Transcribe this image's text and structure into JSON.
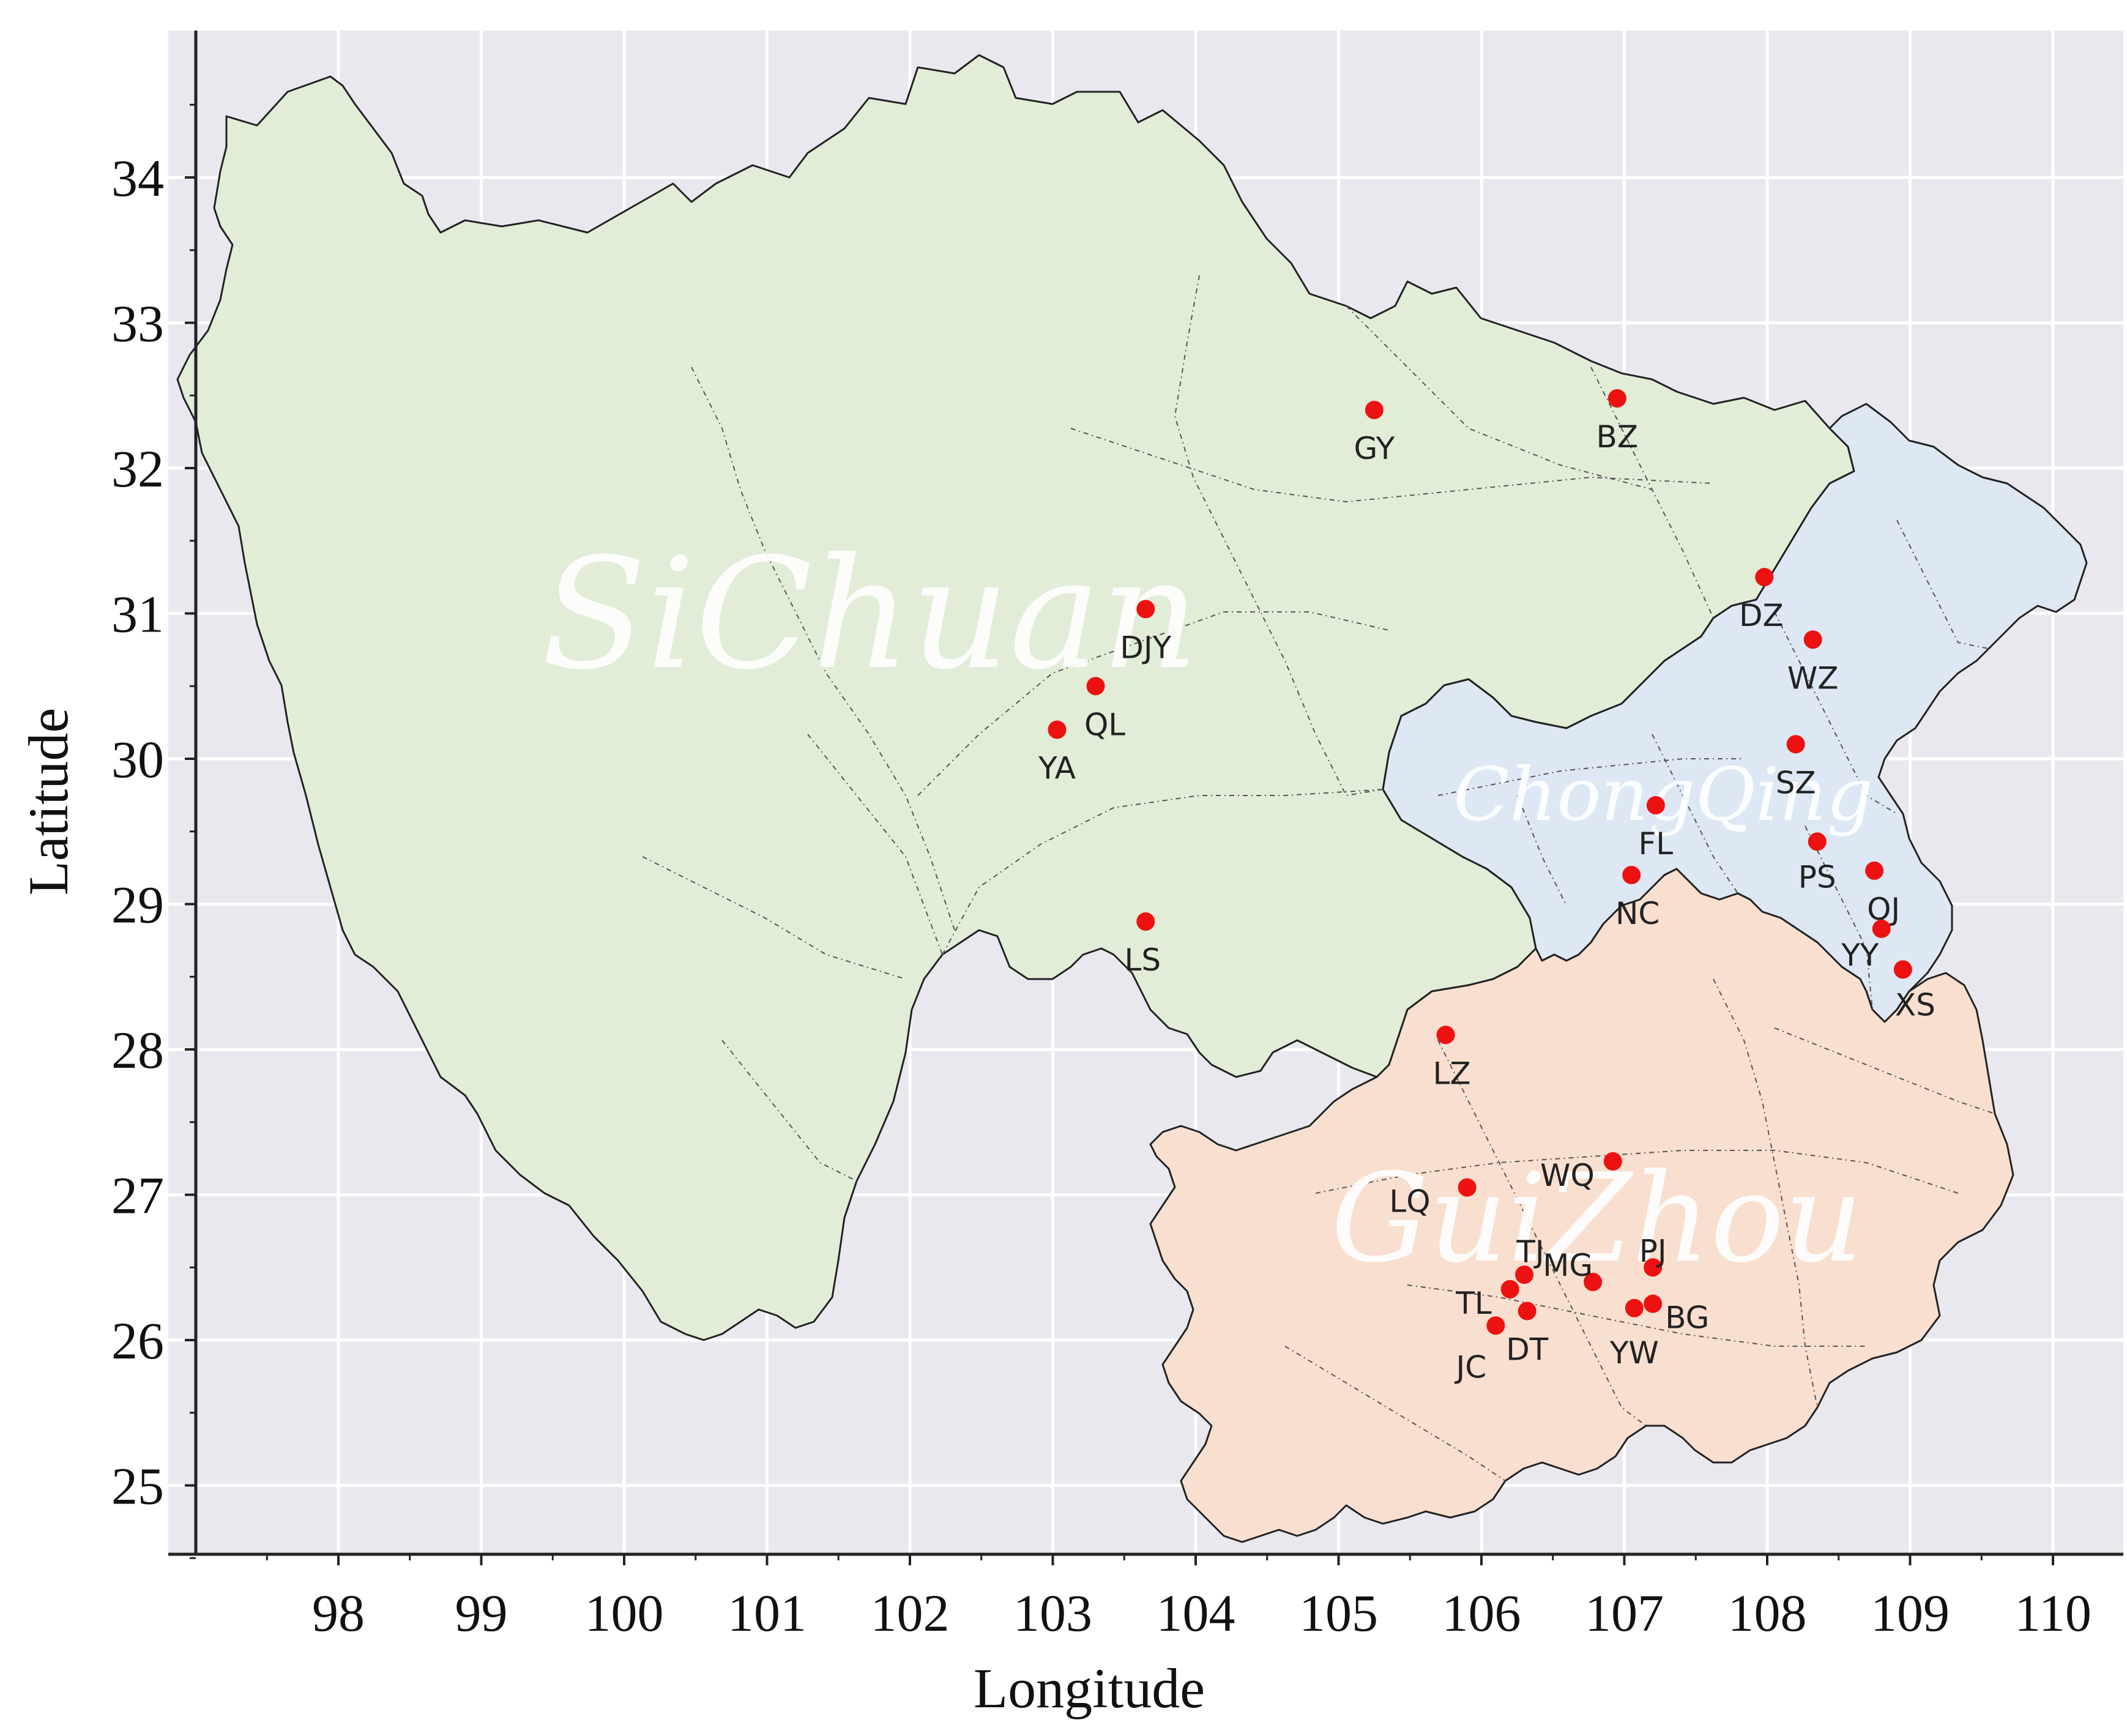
{
  "axes": {
    "x_label": "Longitude",
    "y_label": "Latitude",
    "x_ticks": [
      "98",
      "99",
      "100",
      "101",
      "102",
      "103",
      "104",
      "105",
      "106",
      "107",
      "108",
      "109",
      "110"
    ],
    "y_ticks": [
      "25",
      "26",
      "27",
      "28",
      "29",
      "30",
      "31",
      "32",
      "33",
      "34"
    ],
    "x_range": [
      97.2,
      110.5
    ],
    "y_range": [
      24.5,
      35.0
    ],
    "grid": true
  },
  "regions": [
    {
      "id": "sichuan",
      "label": "SiChuan",
      "fill": "#e2edd8"
    },
    {
      "id": "chongqing",
      "label": "ChongQing",
      "fill": "#dde8f4"
    },
    {
      "id": "guizhou",
      "label": "GuiZhou",
      "fill": "#f8dfcf"
    }
  ],
  "colors": {
    "background": "#e9e8ef",
    "grid": "#ffffff",
    "border": "#222222",
    "site_marker": "#ee1111"
  },
  "sites": [
    {
      "code": "GY",
      "lon": 105.25,
      "lat": 32.4
    },
    {
      "code": "BZ",
      "lon": 106.95,
      "lat": 32.48
    },
    {
      "code": "DZ",
      "lon": 107.98,
      "lat": 31.25
    },
    {
      "code": "WZ",
      "lon": 108.32,
      "lat": 30.82
    },
    {
      "code": "DJY",
      "lon": 103.65,
      "lat": 31.03
    },
    {
      "code": "QL",
      "lon": 103.3,
      "lat": 30.5
    },
    {
      "code": "YA",
      "lon": 103.03,
      "lat": 30.2
    },
    {
      "code": "SZ",
      "lon": 108.2,
      "lat": 30.1
    },
    {
      "code": "FL",
      "lon": 107.22,
      "lat": 29.68
    },
    {
      "code": "NC",
      "lon": 107.05,
      "lat": 29.2
    },
    {
      "code": "PS",
      "lon": 108.35,
      "lat": 29.43
    },
    {
      "code": "QJ",
      "lon": 108.75,
      "lat": 29.23
    },
    {
      "code": "YY",
      "lon": 108.8,
      "lat": 28.83
    },
    {
      "code": "XS",
      "lon": 108.95,
      "lat": 28.55
    },
    {
      "code": "LS",
      "lon": 103.65,
      "lat": 28.88
    },
    {
      "code": "LZ",
      "lon": 105.75,
      "lat": 28.1
    },
    {
      "code": "WQ",
      "lon": 106.92,
      "lat": 27.23
    },
    {
      "code": "LQ",
      "lon": 105.9,
      "lat": 27.05
    },
    {
      "code": "TJ",
      "lon": 106.3,
      "lat": 26.45
    },
    {
      "code": "PJ",
      "lon": 107.2,
      "lat": 26.5
    },
    {
      "code": "MG",
      "lon": 106.78,
      "lat": 26.4
    },
    {
      "code": "TL",
      "lon": 106.2,
      "lat": 26.35
    },
    {
      "code": "DT",
      "lon": 106.32,
      "lat": 26.2
    },
    {
      "code": "YW",
      "lon": 107.07,
      "lat": 26.22
    },
    {
      "code": "BG",
      "lon": 107.2,
      "lat": 26.25
    },
    {
      "code": "JC",
      "lon": 106.1,
      "lat": 26.1
    }
  ]
}
